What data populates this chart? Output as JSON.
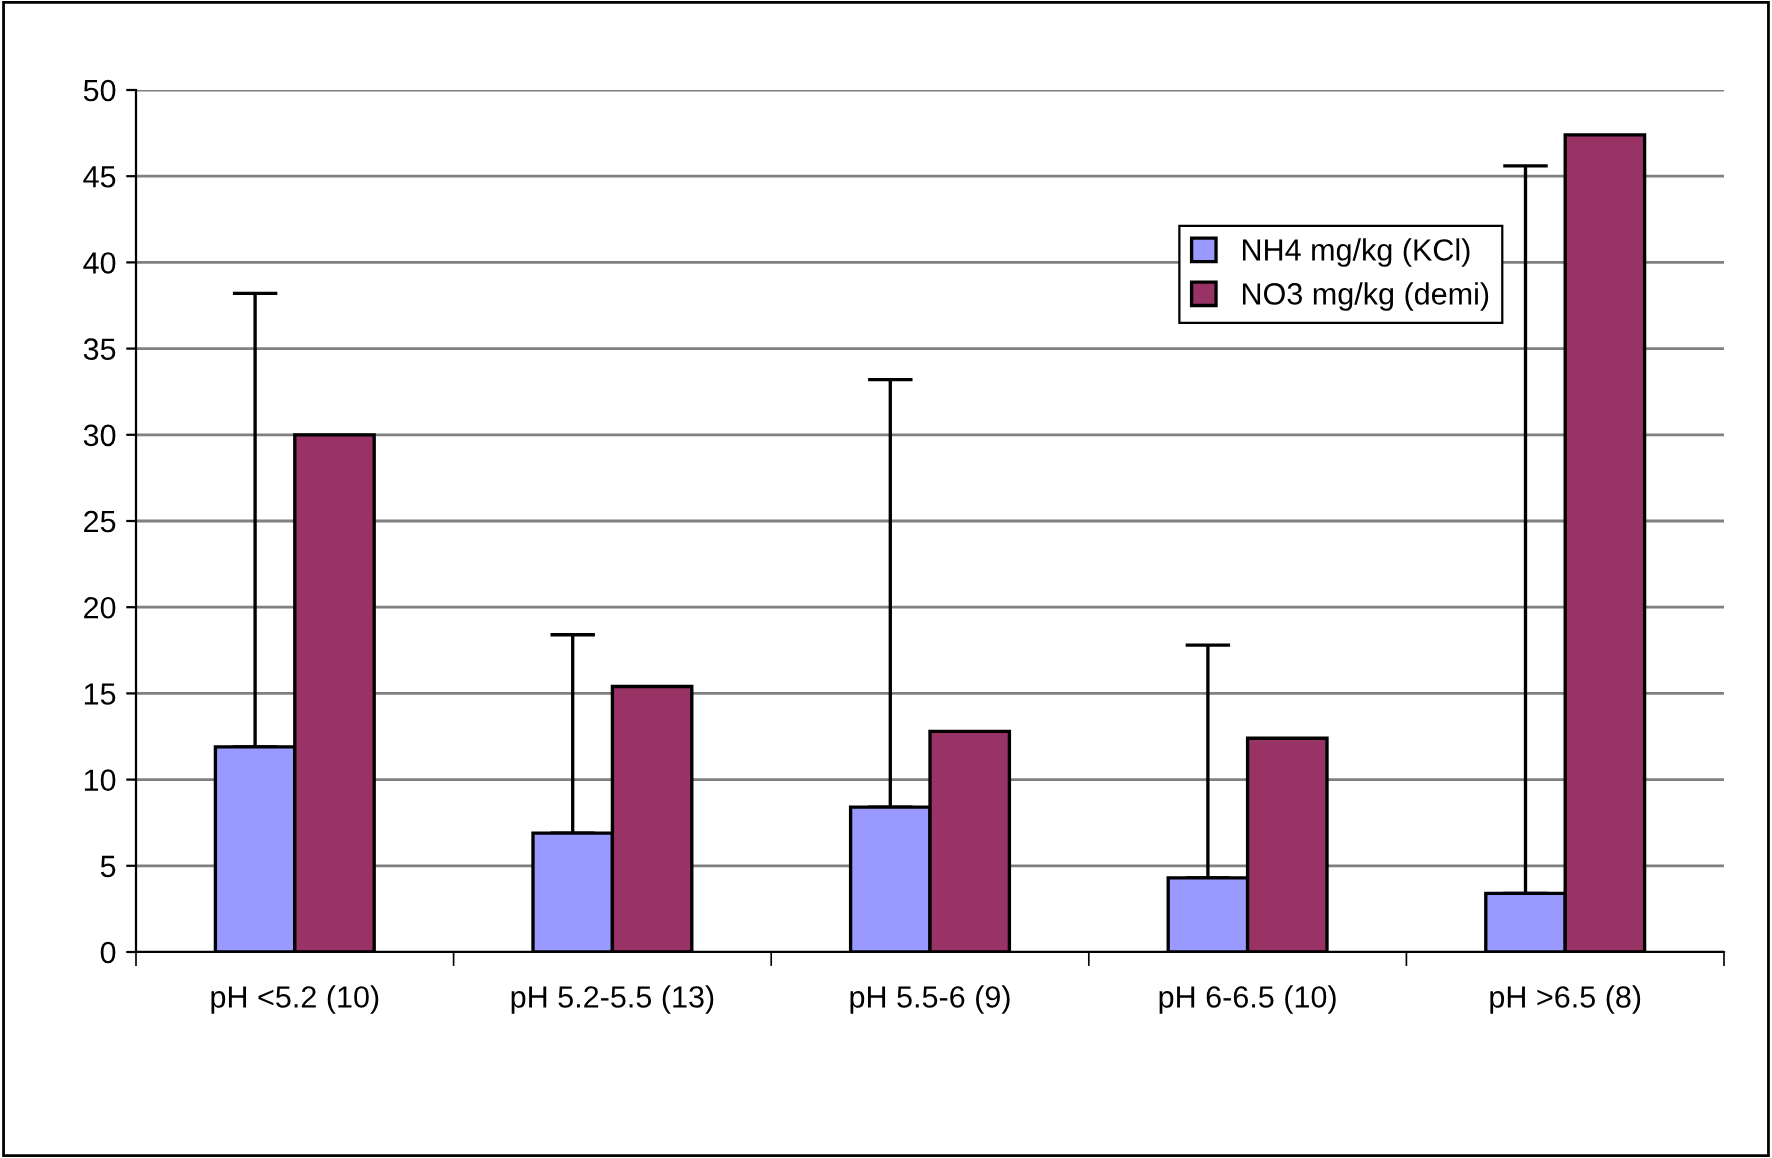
{
  "chart_data": {
    "type": "bar",
    "categories": [
      "pH <5.2 (10)",
      "pH 5.2-5.5 (13)",
      "pH 5.5-6 (9)",
      "pH 6-6.5 (10)",
      "pH >6.5 (8)"
    ],
    "series": [
      {
        "name": "NH4 mg/kg (KCl)",
        "color": "#9999ff",
        "values": [
          11.9,
          6.9,
          8.4,
          4.3,
          3.4
        ],
        "errors": [
          [
            11.9,
            38.2
          ],
          [
            6.9,
            18.4
          ],
          [
            8.4,
            33.2
          ],
          [
            4.3,
            17.8
          ],
          [
            3.4,
            45.6
          ]
        ]
      },
      {
        "name": "NO3 mg/kg (demi)",
        "color": "#993366",
        "values": [
          30.0,
          15.4,
          12.8,
          12.4,
          47.4
        ]
      }
    ],
    "ylim": [
      0,
      50
    ],
    "yticks": [
      0,
      5,
      10,
      15,
      20,
      25,
      30,
      35,
      40,
      45,
      50
    ],
    "grid": "y",
    "legend": "top right"
  }
}
